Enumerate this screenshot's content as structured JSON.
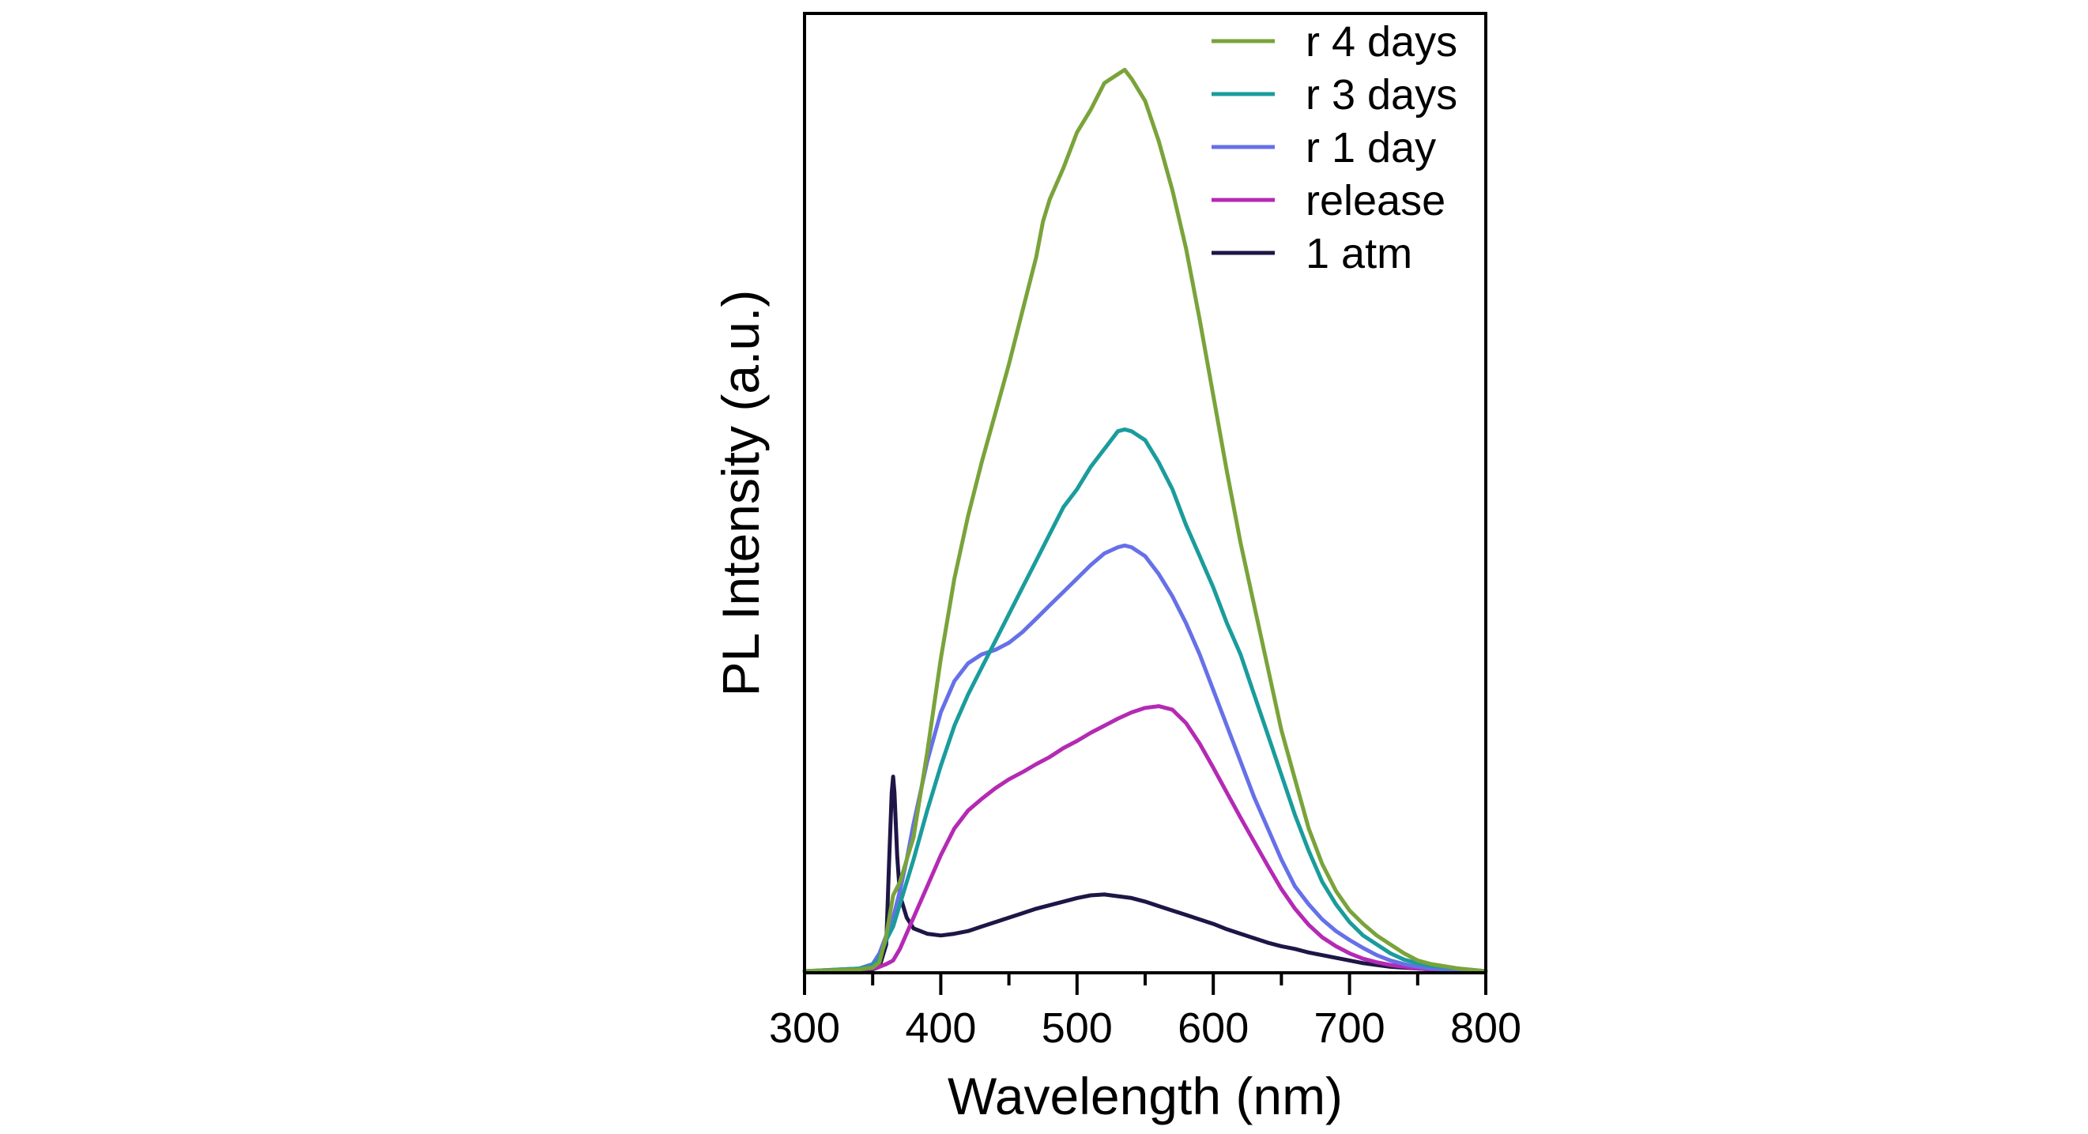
{
  "chart_data": {
    "type": "line",
    "xlabel": "Wavelength (nm)",
    "ylabel": "PL Intensity (a.u.)",
    "xlim": [
      300,
      800
    ],
    "ylim": [
      0,
      1.02
    ],
    "x_ticks": [
      "300",
      "400",
      "500",
      "600",
      "700",
      "800"
    ],
    "y_ticks_shown": false,
    "grid": false,
    "legend_position": "top-right",
    "series": [
      {
        "name": "r 4 days",
        "color": "#7aa33a",
        "x": [
          300,
          340,
          350,
          355,
          360,
          365,
          370,
          380,
          390,
          400,
          410,
          420,
          430,
          440,
          450,
          460,
          470,
          475,
          480,
          490,
          500,
          510,
          520,
          530,
          535,
          540,
          550,
          560,
          570,
          580,
          590,
          600,
          610,
          620,
          630,
          640,
          650,
          660,
          670,
          680,
          690,
          700,
          710,
          720,
          730,
          740,
          750,
          760,
          780,
          800
        ],
        "y": [
          0.0,
          0.002,
          0.004,
          0.01,
          0.04,
          0.085,
          0.1,
          0.15,
          0.245,
          0.35,
          0.44,
          0.51,
          0.57,
          0.625,
          0.68,
          0.74,
          0.8,
          0.84,
          0.865,
          0.9,
          0.94,
          0.965,
          0.995,
          1.005,
          1.01,
          1.0,
          0.975,
          0.93,
          0.875,
          0.81,
          0.73,
          0.645,
          0.56,
          0.48,
          0.41,
          0.34,
          0.27,
          0.215,
          0.16,
          0.12,
          0.09,
          0.068,
          0.053,
          0.04,
          0.03,
          0.02,
          0.012,
          0.008,
          0.003,
          0.0
        ]
      },
      {
        "name": "r 3 days",
        "color": "#1a9c9c",
        "x": [
          300,
          340,
          350,
          355,
          360,
          365,
          370,
          380,
          390,
          400,
          410,
          420,
          430,
          440,
          450,
          460,
          470,
          480,
          490,
          500,
          510,
          520,
          530,
          535,
          540,
          550,
          560,
          570,
          580,
          590,
          600,
          610,
          620,
          630,
          640,
          650,
          660,
          670,
          680,
          690,
          700,
          710,
          720,
          730,
          740,
          750,
          760,
          780,
          800
        ],
        "y": [
          0.0,
          0.003,
          0.006,
          0.015,
          0.035,
          0.05,
          0.075,
          0.125,
          0.18,
          0.23,
          0.275,
          0.31,
          0.34,
          0.37,
          0.4,
          0.43,
          0.46,
          0.49,
          0.52,
          0.54,
          0.565,
          0.585,
          0.605,
          0.607,
          0.605,
          0.595,
          0.57,
          0.54,
          0.5,
          0.465,
          0.43,
          0.39,
          0.355,
          0.31,
          0.265,
          0.22,
          0.175,
          0.135,
          0.1,
          0.075,
          0.055,
          0.04,
          0.03,
          0.02,
          0.013,
          0.009,
          0.006,
          0.003,
          0.0
        ]
      },
      {
        "name": "r 1 day",
        "color": "#6670e8",
        "x": [
          300,
          340,
          350,
          355,
          360,
          365,
          370,
          375,
          380,
          390,
          400,
          410,
          420,
          430,
          440,
          450,
          460,
          470,
          480,
          490,
          500,
          510,
          520,
          530,
          535,
          540,
          550,
          560,
          570,
          580,
          590,
          600,
          610,
          620,
          630,
          640,
          650,
          660,
          670,
          680,
          690,
          700,
          710,
          720,
          730,
          740,
          750,
          760,
          780,
          800
        ],
        "y": [
          0.0,
          0.003,
          0.008,
          0.02,
          0.04,
          0.06,
          0.09,
          0.125,
          0.165,
          0.235,
          0.29,
          0.325,
          0.345,
          0.355,
          0.36,
          0.368,
          0.38,
          0.395,
          0.41,
          0.425,
          0.44,
          0.455,
          0.468,
          0.475,
          0.477,
          0.475,
          0.465,
          0.445,
          0.42,
          0.39,
          0.355,
          0.315,
          0.275,
          0.235,
          0.195,
          0.16,
          0.125,
          0.095,
          0.075,
          0.058,
          0.045,
          0.035,
          0.026,
          0.018,
          0.012,
          0.008,
          0.005,
          0.003,
          0.001,
          0.0
        ]
      },
      {
        "name": "release",
        "color": "#b42ab4",
        "x": [
          300,
          340,
          350,
          355,
          360,
          365,
          370,
          380,
          390,
          400,
          410,
          420,
          430,
          440,
          450,
          460,
          470,
          480,
          490,
          500,
          510,
          520,
          530,
          540,
          550,
          560,
          570,
          580,
          590,
          600,
          610,
          620,
          630,
          640,
          650,
          660,
          670,
          680,
          690,
          700,
          710,
          720,
          730,
          740,
          750,
          760,
          780,
          800
        ],
        "y": [
          0.0,
          0.002,
          0.003,
          0.005,
          0.008,
          0.012,
          0.025,
          0.06,
          0.095,
          0.13,
          0.16,
          0.18,
          0.193,
          0.205,
          0.215,
          0.223,
          0.232,
          0.24,
          0.25,
          0.258,
          0.267,
          0.275,
          0.283,
          0.29,
          0.295,
          0.297,
          0.293,
          0.278,
          0.255,
          0.228,
          0.2,
          0.172,
          0.145,
          0.118,
          0.092,
          0.07,
          0.052,
          0.038,
          0.028,
          0.02,
          0.014,
          0.01,
          0.007,
          0.005,
          0.003,
          0.002,
          0.001,
          0.0
        ]
      },
      {
        "name": "1 atm",
        "color": "#1f1546",
        "x": [
          300,
          340,
          350,
          355,
          360,
          362,
          364,
          365,
          366,
          368,
          370,
          375,
          380,
          390,
          400,
          410,
          420,
          430,
          440,
          450,
          460,
          470,
          480,
          490,
          500,
          510,
          520,
          530,
          540,
          550,
          560,
          570,
          580,
          590,
          600,
          610,
          620,
          630,
          640,
          650,
          660,
          670,
          680,
          690,
          700,
          710,
          720,
          730,
          740,
          750,
          760,
          780,
          800
        ],
        "y": [
          0.0,
          0.001,
          0.002,
          0.005,
          0.03,
          0.12,
          0.2,
          0.218,
          0.2,
          0.13,
          0.085,
          0.06,
          0.048,
          0.042,
          0.04,
          0.042,
          0.045,
          0.05,
          0.055,
          0.06,
          0.065,
          0.07,
          0.074,
          0.078,
          0.082,
          0.085,
          0.086,
          0.084,
          0.082,
          0.078,
          0.073,
          0.068,
          0.063,
          0.058,
          0.053,
          0.047,
          0.042,
          0.037,
          0.032,
          0.028,
          0.025,
          0.021,
          0.018,
          0.015,
          0.012,
          0.009,
          0.007,
          0.005,
          0.004,
          0.003,
          0.002,
          0.001,
          0.0
        ]
      }
    ]
  }
}
